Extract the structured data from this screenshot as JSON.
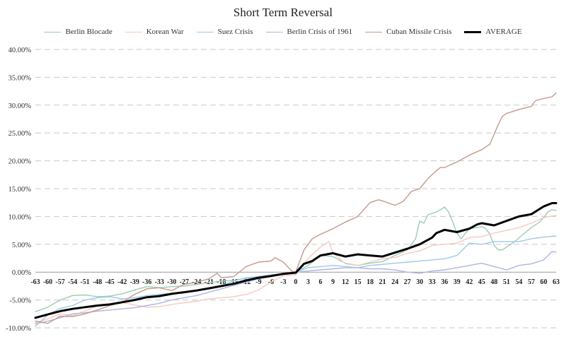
{
  "chart_data": {
    "type": "line",
    "title": "Short Term Reversal",
    "xlabel": "",
    "ylabel": "",
    "ylim": [
      -0.1,
      0.4
    ],
    "y_ticks": [
      -0.1,
      -0.05,
      0.0,
      0.05,
      0.1,
      0.15,
      0.2,
      0.25,
      0.3,
      0.35,
      0.4
    ],
    "y_tick_labels": [
      "-10.00%",
      "-5.00%",
      "0.00%",
      "5.00%",
      "10.00%",
      "15.00%",
      "20.00%",
      "25.00%",
      "30.00%",
      "35.00%",
      "40.00%"
    ],
    "x_range": [
      -63,
      63
    ],
    "x_ticks": [
      -63,
      -60,
      -57,
      -54,
      -51,
      -48,
      -45,
      -42,
      -39,
      -36,
      -33,
      -30,
      -27,
      -24,
      -21,
      -18,
      -15,
      -12,
      -9,
      -6,
      -3,
      0,
      3,
      6,
      9,
      12,
      15,
      18,
      21,
      24,
      27,
      30,
      33,
      36,
      39,
      42,
      45,
      48,
      51,
      54,
      57,
      60,
      63
    ],
    "grid": "horizontal dashed",
    "legend_position": "top",
    "series": [
      {
        "name": "Berlin Blocade",
        "color": "#9ccdb1",
        "width": 1.4,
        "points": [
          [
            -63,
            -0.071
          ],
          [
            -60,
            -0.063
          ],
          [
            -57,
            -0.05
          ],
          [
            -54,
            -0.042
          ],
          [
            -51,
            -0.041
          ],
          [
            -48,
            -0.044
          ],
          [
            -45,
            -0.043
          ],
          [
            -42,
            -0.039
          ],
          [
            -39,
            -0.032
          ],
          [
            -36,
            -0.026
          ],
          [
            -33,
            -0.028
          ],
          [
            -30,
            -0.026
          ],
          [
            -27,
            -0.025
          ],
          [
            -24,
            -0.022
          ],
          [
            -21,
            -0.019
          ],
          [
            -18,
            -0.016
          ],
          [
            -15,
            -0.015
          ],
          [
            -12,
            -0.011
          ],
          [
            -9,
            -0.008
          ],
          [
            -6,
            -0.005
          ],
          [
            -3,
            -0.003
          ],
          [
            0,
            0.0
          ],
          [
            3,
            0.012
          ],
          [
            6,
            0.03
          ],
          [
            9,
            0.028
          ],
          [
            12,
            0.016
          ],
          [
            15,
            0.012
          ],
          [
            18,
            0.016
          ],
          [
            21,
            0.019
          ],
          [
            24,
            0.03
          ],
          [
            27,
            0.04
          ],
          [
            29,
            0.06
          ],
          [
            30,
            0.092
          ],
          [
            31,
            0.088
          ],
          [
            32,
            0.103
          ],
          [
            34,
            0.108
          ],
          [
            35,
            0.112
          ],
          [
            36,
            0.117
          ],
          [
            37,
            0.108
          ],
          [
            38,
            0.09
          ],
          [
            39,
            0.07
          ],
          [
            40,
            0.06
          ],
          [
            42,
            0.078
          ],
          [
            44,
            0.08
          ],
          [
            45,
            0.082
          ],
          [
            46,
            0.078
          ],
          [
            47,
            0.068
          ],
          [
            48,
            0.048
          ],
          [
            49,
            0.04
          ],
          [
            50,
            0.04
          ],
          [
            51,
            0.045
          ],
          [
            53,
            0.055
          ],
          [
            55,
            0.068
          ],
          [
            57,
            0.08
          ],
          [
            59,
            0.09
          ],
          [
            60,
            0.098
          ],
          [
            61,
            0.108
          ],
          [
            62,
            0.112
          ],
          [
            63,
            0.111
          ]
        ]
      },
      {
        "name": "Korean War",
        "color": "#f6cabd",
        "width": 1.4,
        "points": [
          [
            -63,
            -0.091
          ],
          [
            -60,
            -0.084
          ],
          [
            -57,
            -0.075
          ],
          [
            -54,
            -0.078
          ],
          [
            -51,
            -0.07
          ],
          [
            -48,
            -0.06
          ],
          [
            -45,
            -0.058
          ],
          [
            -42,
            -0.054
          ],
          [
            -39,
            -0.059
          ],
          [
            -36,
            -0.063
          ],
          [
            -33,
            -0.062
          ],
          [
            -30,
            -0.058
          ],
          [
            -27,
            -0.055
          ],
          [
            -24,
            -0.052
          ],
          [
            -21,
            -0.048
          ],
          [
            -18,
            -0.046
          ],
          [
            -15,
            -0.044
          ],
          [
            -12,
            -0.04
          ],
          [
            -9,
            -0.032
          ],
          [
            -6,
            -0.018
          ],
          [
            -3,
            -0.006
          ],
          [
            0,
            -0.005
          ],
          [
            3,
            0.025
          ],
          [
            6,
            0.045
          ],
          [
            8,
            0.055
          ],
          [
            9,
            0.035
          ],
          [
            12,
            0.015
          ],
          [
            15,
            0.012
          ],
          [
            18,
            0.018
          ],
          [
            21,
            0.024
          ],
          [
            24,
            0.026
          ],
          [
            27,
            0.034
          ],
          [
            30,
            0.038
          ],
          [
            33,
            0.048
          ],
          [
            36,
            0.05
          ],
          [
            39,
            0.052
          ],
          [
            42,
            0.062
          ],
          [
            45,
            0.064
          ],
          [
            48,
            0.07
          ],
          [
            51,
            0.075
          ],
          [
            54,
            0.08
          ],
          [
            57,
            0.088
          ],
          [
            60,
            0.098
          ],
          [
            63,
            0.102
          ]
        ]
      },
      {
        "name": "Suez Crisis",
        "color": "#9cc9e8",
        "width": 1.4,
        "points": [
          [
            -63,
            -0.097
          ],
          [
            -60,
            -0.077
          ],
          [
            -57,
            -0.065
          ],
          [
            -54,
            -0.06
          ],
          [
            -51,
            -0.05
          ],
          [
            -48,
            -0.046
          ],
          [
            -45,
            -0.044
          ],
          [
            -42,
            -0.048
          ],
          [
            -39,
            -0.046
          ],
          [
            -36,
            -0.042
          ],
          [
            -33,
            -0.04
          ],
          [
            -30,
            -0.038
          ],
          [
            -27,
            -0.036
          ],
          [
            -24,
            -0.034
          ],
          [
            -21,
            -0.03
          ],
          [
            -18,
            -0.024
          ],
          [
            -15,
            -0.016
          ],
          [
            -12,
            -0.01
          ],
          [
            -9,
            -0.008
          ],
          [
            -6,
            -0.005
          ],
          [
            -3,
            -0.003
          ],
          [
            0,
            0.0
          ],
          [
            3,
            0.008
          ],
          [
            6,
            0.01
          ],
          [
            9,
            0.012
          ],
          [
            12,
            0.01
          ],
          [
            15,
            0.008
          ],
          [
            18,
            0.012
          ],
          [
            21,
            0.014
          ],
          [
            24,
            0.016
          ],
          [
            27,
            0.018
          ],
          [
            30,
            0.02
          ],
          [
            33,
            0.022
          ],
          [
            36,
            0.024
          ],
          [
            39,
            0.03
          ],
          [
            42,
            0.052
          ],
          [
            45,
            0.05
          ],
          [
            48,
            0.055
          ],
          [
            51,
            0.055
          ],
          [
            54,
            0.055
          ],
          [
            57,
            0.06
          ],
          [
            60,
            0.063
          ],
          [
            63,
            0.065
          ]
        ]
      },
      {
        "name": "Berlin Crisis of 1961",
        "color": "#aeb6e0",
        "width": 1.4,
        "points": [
          [
            -63,
            -0.093
          ],
          [
            -60,
            -0.088
          ],
          [
            -57,
            -0.082
          ],
          [
            -54,
            -0.075
          ],
          [
            -51,
            -0.073
          ],
          [
            -48,
            -0.07
          ],
          [
            -45,
            -0.068
          ],
          [
            -42,
            -0.066
          ],
          [
            -39,
            -0.064
          ],
          [
            -36,
            -0.06
          ],
          [
            -33,
            -0.056
          ],
          [
            -30,
            -0.05
          ],
          [
            -27,
            -0.046
          ],
          [
            -24,
            -0.042
          ],
          [
            -21,
            -0.036
          ],
          [
            -18,
            -0.03
          ],
          [
            -15,
            -0.024
          ],
          [
            -12,
            -0.018
          ],
          [
            -9,
            -0.012
          ],
          [
            -6,
            -0.008
          ],
          [
            -3,
            -0.004
          ],
          [
            0,
            0.0
          ],
          [
            3,
            0.002
          ],
          [
            6,
            0.004
          ],
          [
            9,
            0.006
          ],
          [
            12,
            0.008
          ],
          [
            15,
            0.008
          ],
          [
            18,
            0.006
          ],
          [
            21,
            0.006
          ],
          [
            24,
            0.004
          ],
          [
            27,
            0.0
          ],
          [
            30,
            -0.002
          ],
          [
            33,
            0.002
          ],
          [
            36,
            0.004
          ],
          [
            39,
            0.008
          ],
          [
            42,
            0.012
          ],
          [
            45,
            0.016
          ],
          [
            48,
            0.01
          ],
          [
            51,
            0.004
          ],
          [
            54,
            0.012
          ],
          [
            57,
            0.015
          ],
          [
            60,
            0.022
          ],
          [
            62,
            0.037
          ],
          [
            63,
            0.036
          ]
        ]
      },
      {
        "name": "Cuban Missile Crisis",
        "color": "#c49a8a",
        "width": 1.4,
        "points": [
          [
            -63,
            -0.088
          ],
          [
            -60,
            -0.092
          ],
          [
            -57,
            -0.079
          ],
          [
            -54,
            -0.08
          ],
          [
            -51,
            -0.075
          ],
          [
            -48,
            -0.068
          ],
          [
            -45,
            -0.06
          ],
          [
            -42,
            -0.054
          ],
          [
            -39,
            -0.04
          ],
          [
            -36,
            -0.03
          ],
          [
            -33,
            -0.028
          ],
          [
            -30,
            -0.033
          ],
          [
            -27,
            -0.022
          ],
          [
            -24,
            -0.018
          ],
          [
            -21,
            -0.012
          ],
          [
            -19,
            -0.002
          ],
          [
            -18,
            -0.01
          ],
          [
            -15,
            -0.008
          ],
          [
            -13,
            0.004
          ],
          [
            -12,
            0.01
          ],
          [
            -9,
            0.018
          ],
          [
            -6,
            0.02
          ],
          [
            -5,
            0.026
          ],
          [
            -3,
            0.018
          ],
          [
            -1,
            0.002
          ],
          [
            0,
            0.0
          ],
          [
            2,
            0.04
          ],
          [
            4,
            0.06
          ],
          [
            6,
            0.068
          ],
          [
            9,
            0.078
          ],
          [
            12,
            0.09
          ],
          [
            15,
            0.1
          ],
          [
            18,
            0.125
          ],
          [
            20,
            0.13
          ],
          [
            21,
            0.128
          ],
          [
            24,
            0.12
          ],
          [
            26,
            0.127
          ],
          [
            28,
            0.145
          ],
          [
            30,
            0.15
          ],
          [
            32,
            0.168
          ],
          [
            34,
            0.182
          ],
          [
            35,
            0.188
          ],
          [
            36,
            0.188
          ],
          [
            39,
            0.198
          ],
          [
            42,
            0.21
          ],
          [
            45,
            0.22
          ],
          [
            47,
            0.23
          ],
          [
            49,
            0.265
          ],
          [
            50,
            0.28
          ],
          [
            51,
            0.285
          ],
          [
            54,
            0.292
          ],
          [
            57,
            0.298
          ],
          [
            58,
            0.308
          ],
          [
            60,
            0.312
          ],
          [
            62,
            0.315
          ],
          [
            63,
            0.322
          ]
        ]
      },
      {
        "name": "AVERAGE",
        "color": "#000000",
        "width": 3,
        "points": [
          [
            -63,
            -0.082
          ],
          [
            -60,
            -0.076
          ],
          [
            -57,
            -0.07
          ],
          [
            -54,
            -0.066
          ],
          [
            -51,
            -0.063
          ],
          [
            -48,
            -0.06
          ],
          [
            -45,
            -0.058
          ],
          [
            -42,
            -0.054
          ],
          [
            -39,
            -0.05
          ],
          [
            -36,
            -0.045
          ],
          [
            -33,
            -0.043
          ],
          [
            -30,
            -0.039
          ],
          [
            -27,
            -0.036
          ],
          [
            -24,
            -0.033
          ],
          [
            -21,
            -0.029
          ],
          [
            -18,
            -0.025
          ],
          [
            -15,
            -0.021
          ],
          [
            -12,
            -0.015
          ],
          [
            -9,
            -0.01
          ],
          [
            -6,
            -0.007
          ],
          [
            -3,
            -0.003
          ],
          [
            0,
            -0.001
          ],
          [
            2,
            0.015
          ],
          [
            4,
            0.02
          ],
          [
            6,
            0.03
          ],
          [
            9,
            0.034
          ],
          [
            12,
            0.028
          ],
          [
            15,
            0.032
          ],
          [
            18,
            0.03
          ],
          [
            21,
            0.028
          ],
          [
            24,
            0.035
          ],
          [
            27,
            0.042
          ],
          [
            30,
            0.05
          ],
          [
            33,
            0.062
          ],
          [
            34,
            0.07
          ],
          [
            36,
            0.076
          ],
          [
            39,
            0.072
          ],
          [
            42,
            0.078
          ],
          [
            44,
            0.086
          ],
          [
            45,
            0.088
          ],
          [
            48,
            0.084
          ],
          [
            51,
            0.092
          ],
          [
            54,
            0.1
          ],
          [
            57,
            0.104
          ],
          [
            60,
            0.118
          ],
          [
            62,
            0.124
          ],
          [
            63,
            0.124
          ]
        ]
      }
    ]
  }
}
